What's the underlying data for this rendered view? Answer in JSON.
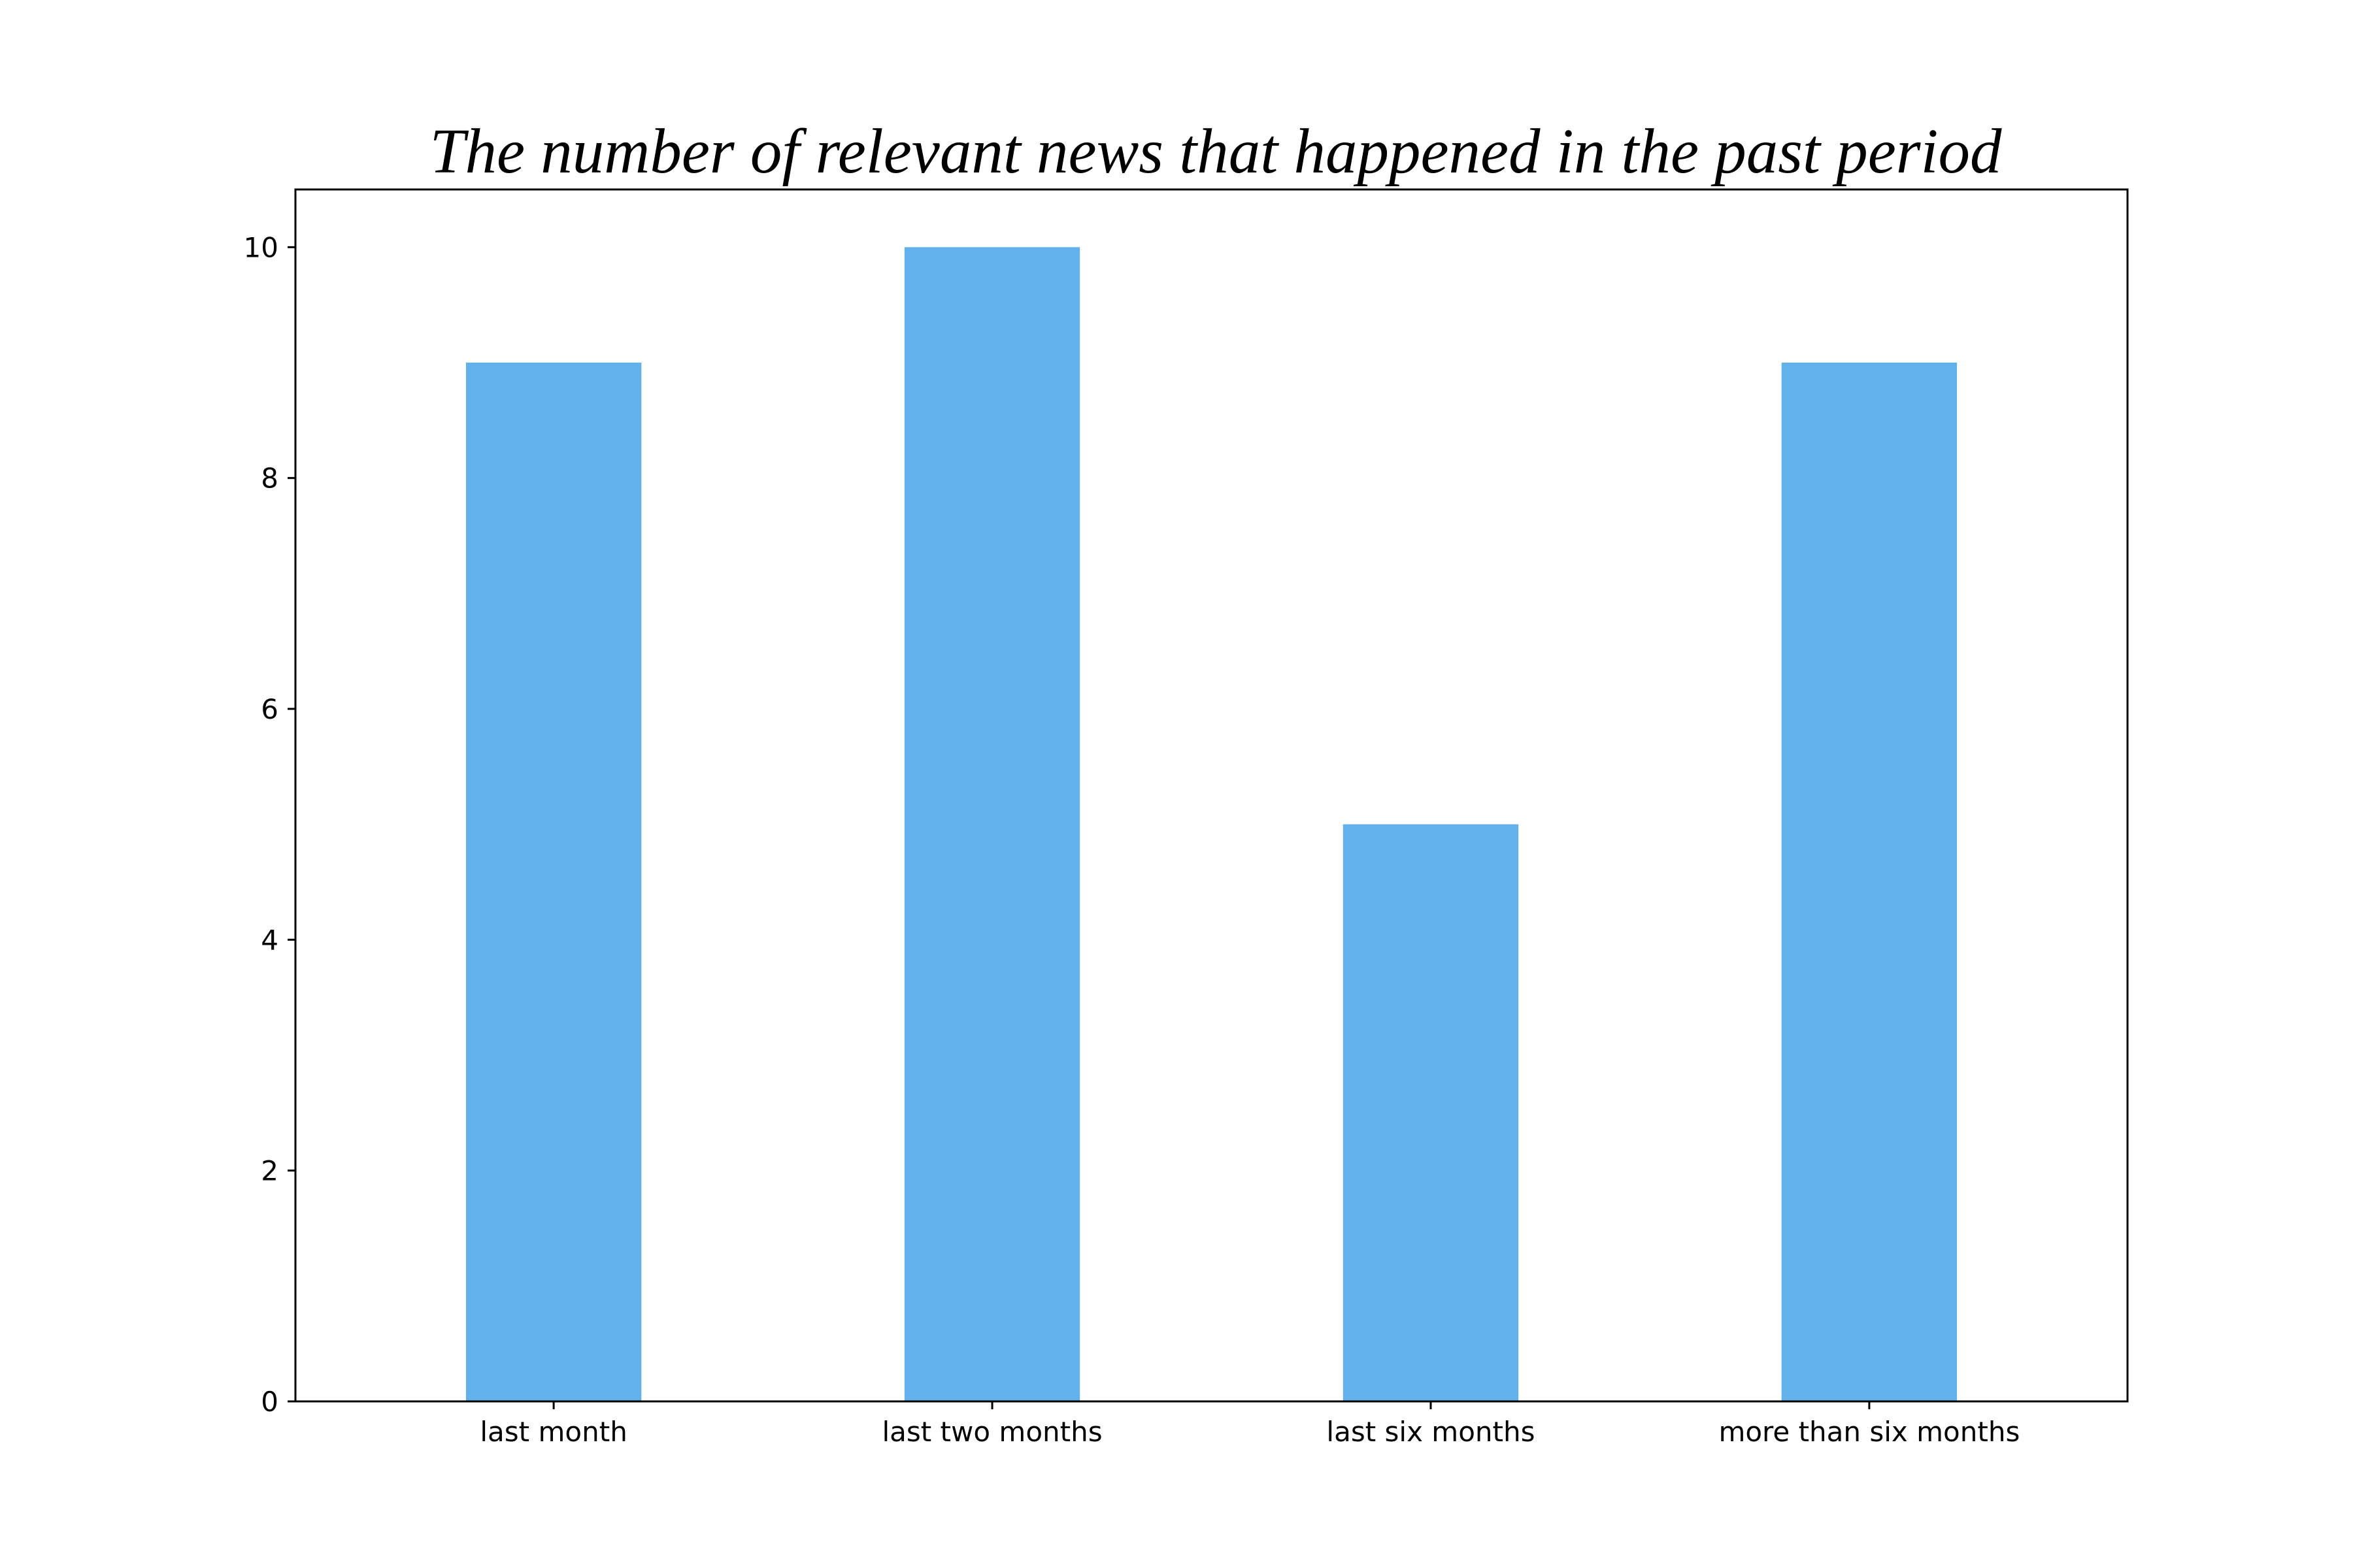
{
  "chart_data": {
    "type": "bar",
    "title": "The number of relevant news that happened in the past period",
    "xlabel": "",
    "ylabel": "",
    "categories": [
      "last month",
      "last two months",
      "last six months",
      "more than six months"
    ],
    "values": [
      9,
      10,
      5,
      9
    ],
    "ylim": [
      0,
      10.5
    ],
    "yticks": [
      0,
      2,
      4,
      6,
      8,
      10
    ],
    "ytick_labels": [
      "0",
      "2",
      "4",
      "6",
      "8",
      "10"
    ],
    "bar_color": "#63b1eb",
    "grid": false,
    "legend": "none"
  }
}
